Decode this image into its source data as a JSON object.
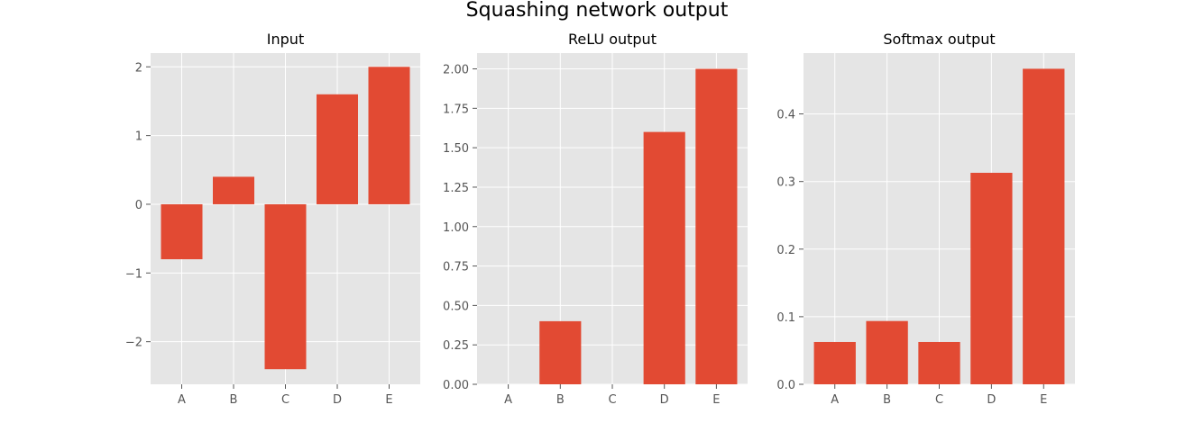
{
  "figure": {
    "title": "Squashing network output"
  },
  "style": {
    "bar_color": "#E24A33",
    "panel_bg": "#E5E5E5",
    "grid_color": "#FFFFFF",
    "tick_color": "#555555"
  },
  "chart_data": [
    {
      "type": "bar",
      "title": "Input",
      "categories": [
        "A",
        "B",
        "C",
        "D",
        "E"
      ],
      "values": [
        -0.8,
        0.4,
        -2.4,
        1.6,
        2.0
      ],
      "yticks": [
        2,
        1,
        0,
        -1,
        -2
      ],
      "ytick_labels": [
        "2",
        "1",
        "0",
        "−1",
        "−2"
      ],
      "ylim": [
        -2.62,
        2.2
      ],
      "grid": true
    },
    {
      "type": "bar",
      "title": "ReLU output",
      "categories": [
        "A",
        "B",
        "C",
        "D",
        "E"
      ],
      "values": [
        0.0,
        0.4,
        0.0,
        1.6,
        2.0
      ],
      "yticks": [
        0.0,
        0.25,
        0.5,
        0.75,
        1.0,
        1.25,
        1.5,
        1.75,
        2.0
      ],
      "ytick_labels": [
        "0.00",
        "0.25",
        "0.50",
        "0.75",
        "1.00",
        "1.25",
        "1.50",
        "1.75",
        "2.00"
      ],
      "ylim": [
        0,
        2.1
      ],
      "grid": true
    },
    {
      "type": "bar",
      "title": "Softmax output",
      "categories": [
        "A",
        "B",
        "C",
        "D",
        "E"
      ],
      "values": [
        0.0626,
        0.0936,
        0.0626,
        0.3129,
        0.4668
      ],
      "yticks": [
        0.0,
        0.1,
        0.2,
        0.3,
        0.4
      ],
      "ytick_labels": [
        "0.0",
        "0.1",
        "0.2",
        "0.3",
        "0.4"
      ],
      "ylim": [
        0,
        0.49
      ],
      "grid": true
    }
  ]
}
